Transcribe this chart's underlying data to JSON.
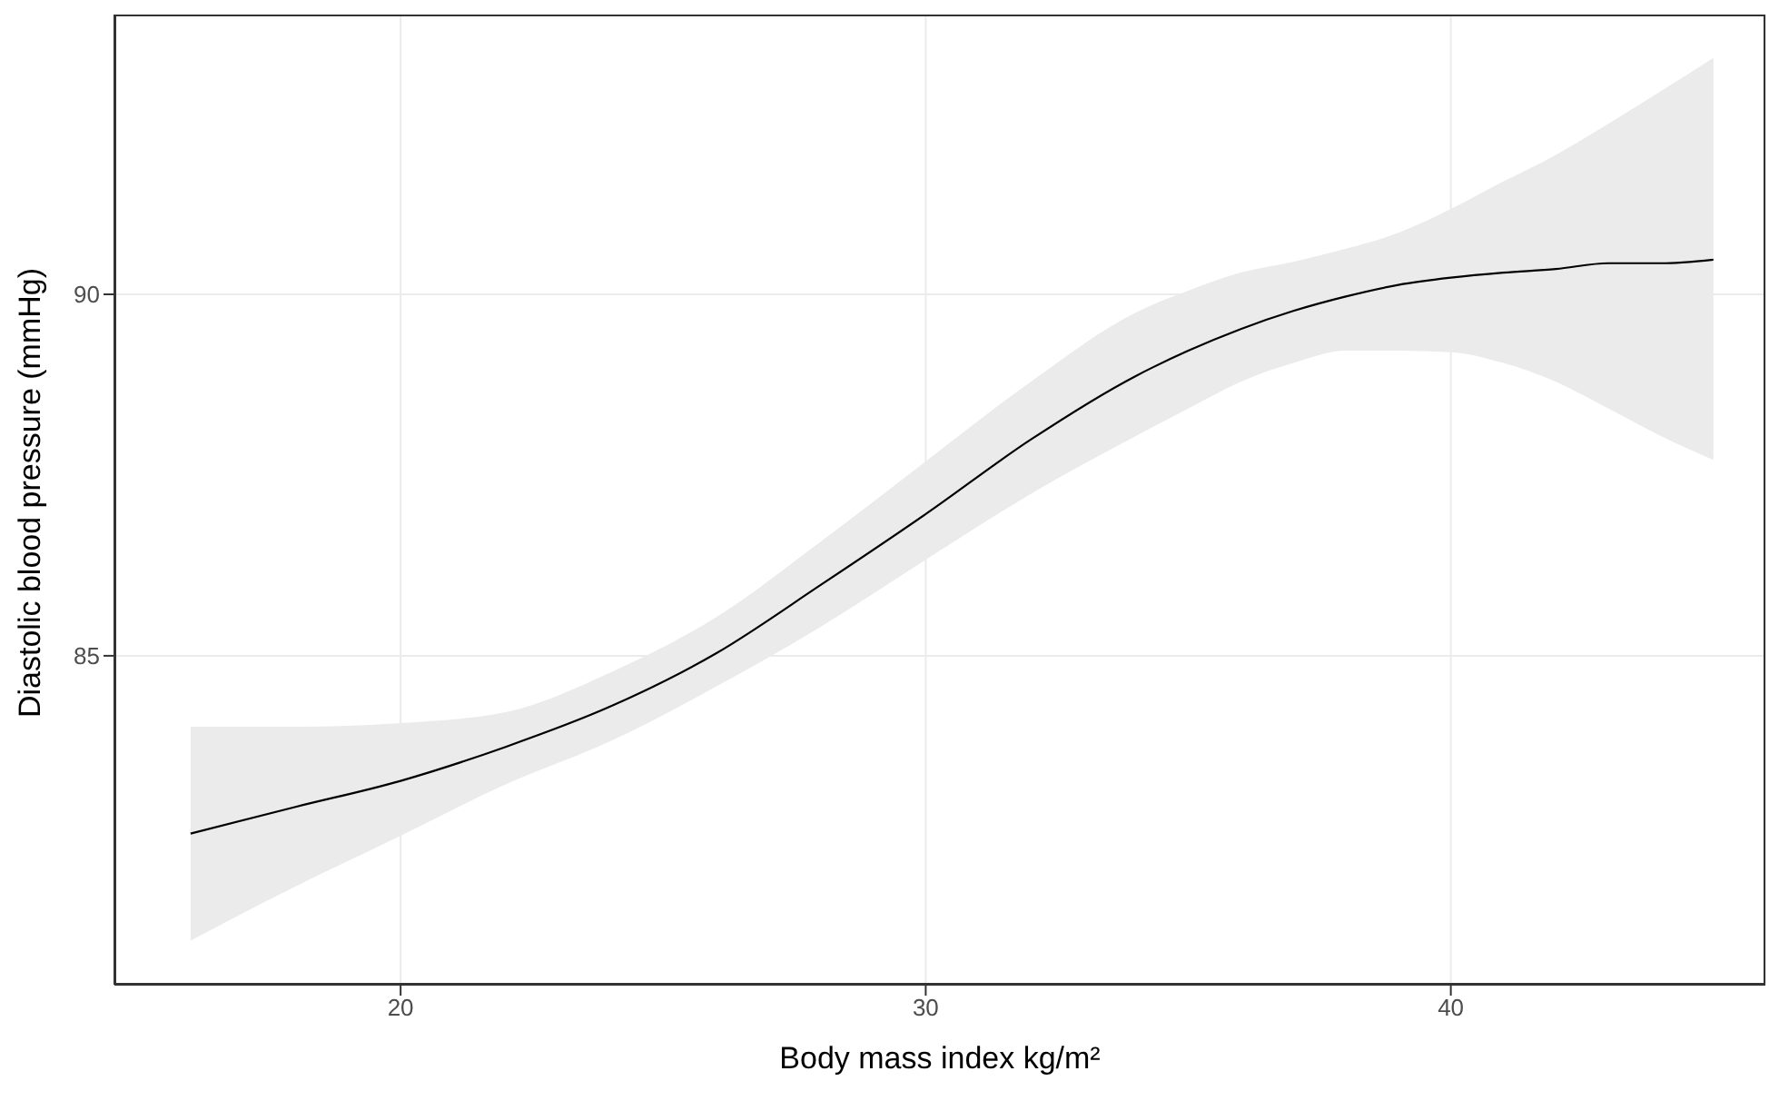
{
  "chart_data": {
    "type": "line",
    "xlabel": "Body mass index kg/m²",
    "ylabel": "Diastolic blood pressure (mmHg)",
    "xlim": [
      14.55,
      45.99
    ],
    "ylim": [
      80.45,
      93.87
    ],
    "xticks": [
      20,
      30,
      40
    ],
    "yticks": [
      85,
      90
    ],
    "grid": true,
    "x": [
      16,
      18,
      20,
      22,
      24,
      26,
      28,
      30,
      32,
      34,
      35,
      36,
      37,
      38,
      39,
      40,
      41,
      42,
      43,
      44,
      45
    ],
    "series": [
      {
        "color": "#000000",
        "values": [
          82.54,
          82.91,
          83.27,
          83.74,
          84.3,
          85.03,
          85.98,
          86.96,
          87.99,
          88.87,
          89.22,
          89.52,
          89.77,
          89.97,
          90.13,
          90.23,
          90.3,
          90.35,
          90.43,
          90.43,
          90.48
        ],
        "lower": [
          81.06,
          81.81,
          82.51,
          83.22,
          83.82,
          84.57,
          85.4,
          86.33,
          87.24,
          88.04,
          88.42,
          88.79,
          89.05,
          89.22,
          89.22,
          89.2,
          89.05,
          88.79,
          88.42,
          88.04,
          87.71
        ],
        "upper": [
          84.02,
          84.02,
          84.07,
          84.22,
          84.77,
          85.53,
          86.58,
          87.69,
          88.79,
          89.75,
          90.05,
          90.3,
          90.45,
          90.63,
          90.85,
          91.18,
          91.56,
          91.93,
          92.36,
          92.81,
          93.27
        ]
      }
    ]
  }
}
